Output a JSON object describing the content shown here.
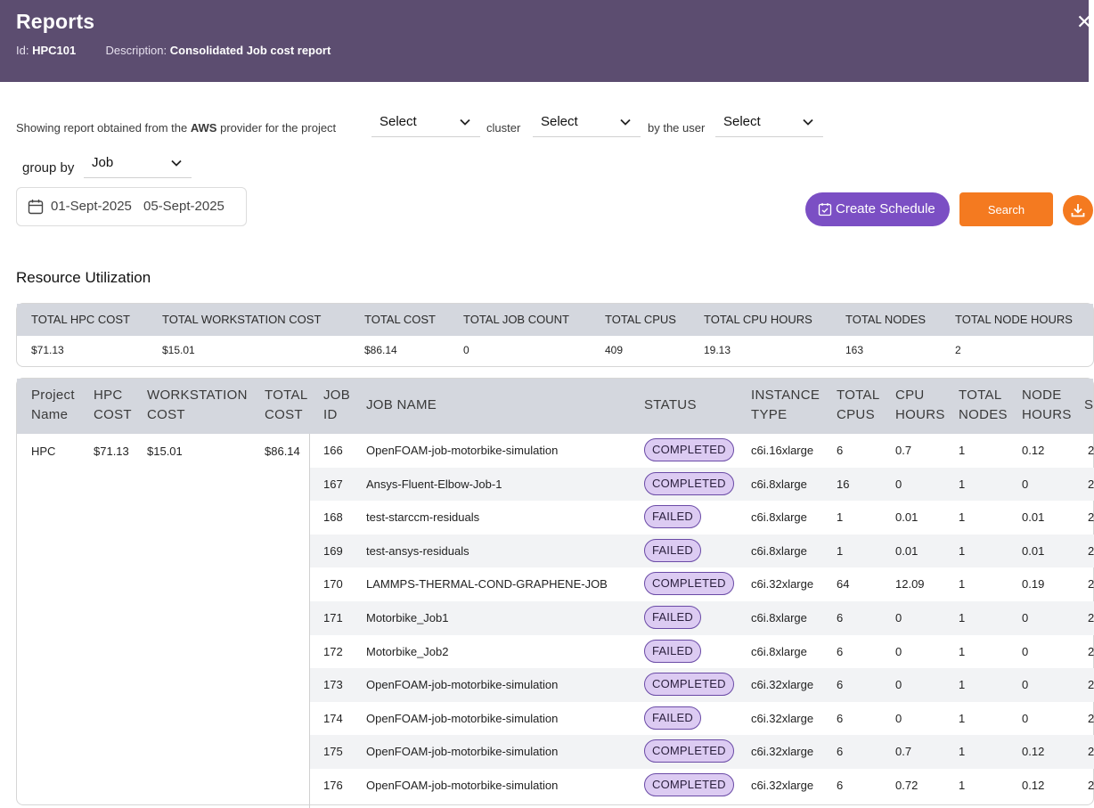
{
  "header": {
    "title": "Reports",
    "id_label": "Id:",
    "id_value": "HPC101",
    "desc_label": "Description:",
    "desc_value": "Consolidated Job cost report",
    "close_icon": "close-icon"
  },
  "filters": {
    "text_prefix": "Showing report obtained from the",
    "provider": "AWS",
    "text_provider": "provider for the project",
    "project_value": "Select",
    "text_cluster": "cluster",
    "cluster_value": "Select",
    "text_user": "by the user",
    "user_value": "Select",
    "group_by_label": "group by",
    "group_by_value": "Job"
  },
  "dates": {
    "start": "01-Sept-2025",
    "end": "05-Sept-2025"
  },
  "actions": {
    "create_schedule": "Create Schedule",
    "search": "Search"
  },
  "section_title": "Resource Utilization",
  "summary": {
    "headers": [
      "TOTAL HPC COST",
      "TOTAL WORKSTATION COST",
      "TOTAL COST",
      "TOTAL JOB COUNT",
      "TOTAL CPUS",
      "TOTAL CPU HOURS",
      "TOTAL NODES",
      "TOTAL NODE HOURS"
    ],
    "values": [
      "$71.13",
      "$15.01",
      "$86.14",
      "0",
      "409",
      "19.13",
      "163",
      "2"
    ]
  },
  "table": {
    "headers": {
      "project_name": [
        "Project",
        "Name"
      ],
      "hpc_cost": [
        "HPC",
        "COST"
      ],
      "workstation_cost": [
        "WORKSTATION",
        "COST"
      ],
      "total_cost": [
        "TOTAL",
        "COST"
      ],
      "job_id": [
        "JOB",
        "ID"
      ],
      "job_name": "JOB NAME",
      "status": "STATUS",
      "instance_type": [
        "INSTANCE",
        "TYPE"
      ],
      "total_cpus": [
        "TOTAL",
        "CPUS"
      ],
      "cpu_hours": [
        "CPU",
        "HOURS"
      ],
      "total_nodes": [
        "TOTAL",
        "NODES"
      ],
      "node_hours": [
        "NODE",
        "HOURS"
      ],
      "trailing": "S"
    },
    "group": {
      "project_name": "HPC",
      "hpc_cost": "$71.13",
      "workstation_cost": "$15.01",
      "total_cost": "$86.14"
    },
    "rows": [
      {
        "job_id": "166",
        "job_name": "OpenFOAM-job-motorbike-simulation",
        "status": "COMPLETED",
        "instance_type": "c6i.16xlarge",
        "total_cpus": "6",
        "cpu_hours": "0.7",
        "total_nodes": "1",
        "node_hours": "0.12",
        "trailing": "2"
      },
      {
        "job_id": "167",
        "job_name": "Ansys-Fluent-Elbow-Job-1",
        "status": "COMPLETED",
        "instance_type": "c6i.8xlarge",
        "total_cpus": "16",
        "cpu_hours": "0",
        "total_nodes": "1",
        "node_hours": "0",
        "trailing": "2"
      },
      {
        "job_id": "168",
        "job_name": "test-starccm-residuals",
        "status": "FAILED",
        "instance_type": "c6i.8xlarge",
        "total_cpus": "1",
        "cpu_hours": "0.01",
        "total_nodes": "1",
        "node_hours": "0.01",
        "trailing": "2"
      },
      {
        "job_id": "169",
        "job_name": "test-ansys-residuals",
        "status": "FAILED",
        "instance_type": "c6i.8xlarge",
        "total_cpus": "1",
        "cpu_hours": "0.01",
        "total_nodes": "1",
        "node_hours": "0.01",
        "trailing": "2"
      },
      {
        "job_id": "170",
        "job_name": "LAMMPS-THERMAL-COND-GRAPHENE-JOB",
        "status": "COMPLETED",
        "instance_type": "c6i.32xlarge",
        "total_cpus": "64",
        "cpu_hours": "12.09",
        "total_nodes": "1",
        "node_hours": "0.19",
        "trailing": "2"
      },
      {
        "job_id": "171",
        "job_name": "Motorbike_Job1",
        "status": "FAILED",
        "instance_type": "c6i.8xlarge",
        "total_cpus": "6",
        "cpu_hours": "0",
        "total_nodes": "1",
        "node_hours": "0",
        "trailing": "2"
      },
      {
        "job_id": "172",
        "job_name": "Motorbike_Job2",
        "status": "FAILED",
        "instance_type": "c6i.8xlarge",
        "total_cpus": "6",
        "cpu_hours": "0",
        "total_nodes": "1",
        "node_hours": "0",
        "trailing": "2"
      },
      {
        "job_id": "173",
        "job_name": "OpenFOAM-job-motorbike-simulation",
        "status": "COMPLETED",
        "instance_type": "c6i.32xlarge",
        "total_cpus": "6",
        "cpu_hours": "0",
        "total_nodes": "1",
        "node_hours": "0",
        "trailing": "2"
      },
      {
        "job_id": "174",
        "job_name": "OpenFOAM-job-motorbike-simulation",
        "status": "FAILED",
        "instance_type": "c6i.32xlarge",
        "total_cpus": "6",
        "cpu_hours": "0",
        "total_nodes": "1",
        "node_hours": "0",
        "trailing": "2"
      },
      {
        "job_id": "175",
        "job_name": "OpenFOAM-job-motorbike-simulation",
        "status": "COMPLETED",
        "instance_type": "c6i.32xlarge",
        "total_cpus": "6",
        "cpu_hours": "0.7",
        "total_nodes": "1",
        "node_hours": "0.12",
        "trailing": "2"
      },
      {
        "job_id": "176",
        "job_name": "OpenFOAM-job-motorbike-simulation",
        "status": "COMPLETED",
        "instance_type": "c6i.32xlarge",
        "total_cpus": "6",
        "cpu_hours": "0.72",
        "total_nodes": "1",
        "node_hours": "0.12",
        "trailing": "2"
      }
    ]
  },
  "colors": {
    "header_bg": "#5c4d70",
    "accent_purple": "#7b4fc4",
    "accent_orange": "#f47a20",
    "table_header_bg": "#d4d7de",
    "badge_bg": "#dccbf2"
  }
}
